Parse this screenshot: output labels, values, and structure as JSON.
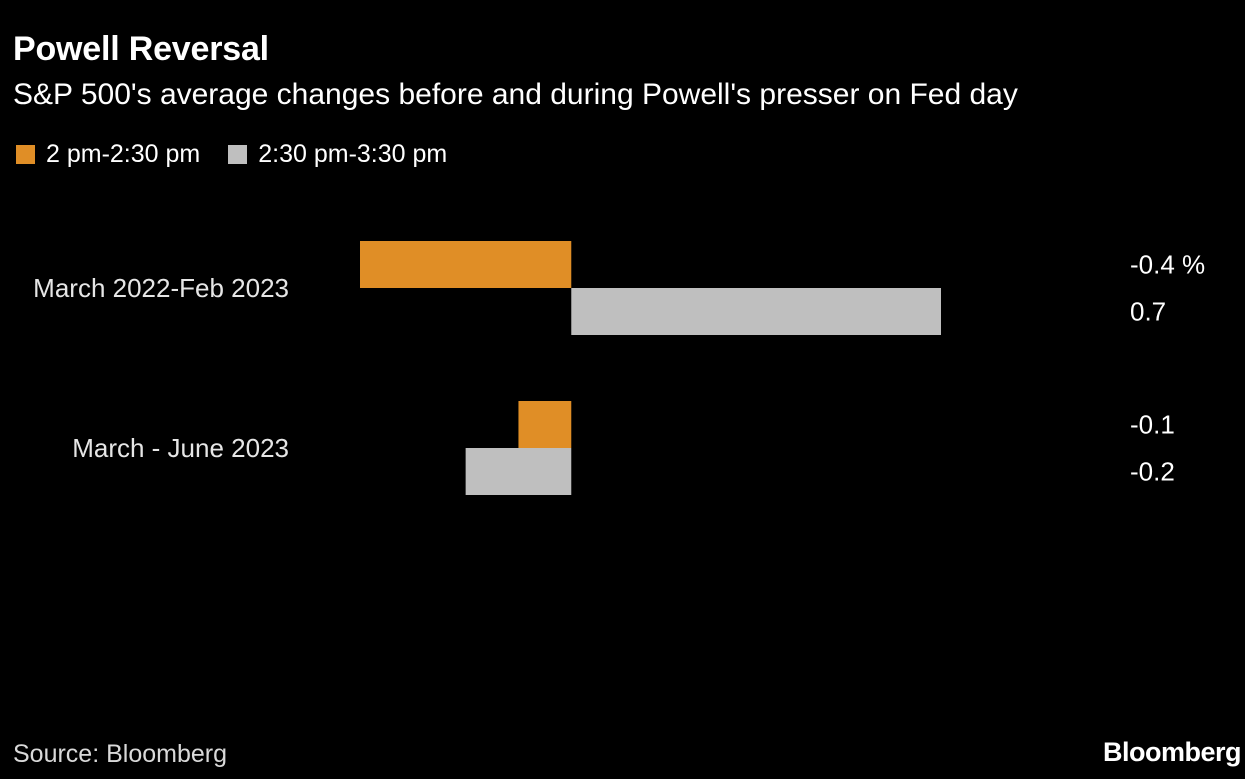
{
  "header": {
    "title": "Powell Reversal",
    "subtitle": "S&P 500's average changes before and during Powell's presser on Fed day"
  },
  "legend": [
    {
      "label": "2 pm-2:30 pm",
      "color": "#e08e26"
    },
    {
      "label": "2:30 pm-3:30 pm",
      "color": "#bfbfbf"
    }
  ],
  "chart_data": {
    "type": "bar",
    "orientation": "horizontal",
    "categories": [
      "March 2022-Feb 2023",
      "March - June 2023"
    ],
    "series": [
      {
        "name": "2 pm-2:30 pm",
        "values": [
          -0.4,
          -0.1
        ],
        "color": "#e08e26"
      },
      {
        "name": "2:30 pm-3:30 pm",
        "values": [
          0.7,
          -0.2
        ],
        "color": "#bfbfbf"
      }
    ],
    "value_labels": [
      [
        "-0.4 %",
        "0.7"
      ],
      [
        "-0.1",
        "-0.2"
      ]
    ],
    "xlim": [
      -0.4,
      0.7
    ],
    "grid": false,
    "legend_position": "top-left"
  },
  "footer": {
    "source": "Source: Bloomberg",
    "brand": "Bloomberg"
  }
}
